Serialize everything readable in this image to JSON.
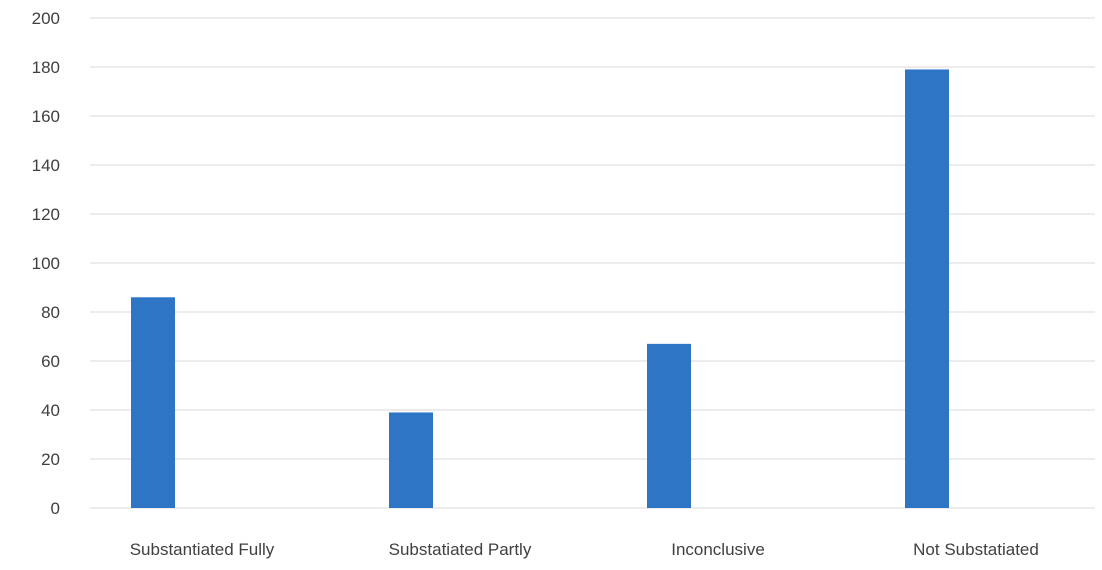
{
  "chart_data": {
    "type": "bar",
    "categories": [
      "Substantiated Fully",
      "Substatiated Partly",
      "Inconclusive",
      "Not Substatiated"
    ],
    "values": [
      86,
      39,
      67,
      179
    ],
    "title": "",
    "xlabel": "",
    "ylabel": "",
    "ylim": [
      0,
      200
    ],
    "yticks": [
      "0",
      "20",
      "40",
      "60",
      "80",
      "100",
      "120",
      "140",
      "160",
      "180",
      "200"
    ],
    "grid": true,
    "legend": "none",
    "bar_color": "#2e75c5",
    "grid_color": "#d9d9d9",
    "text_color": "#404040"
  }
}
